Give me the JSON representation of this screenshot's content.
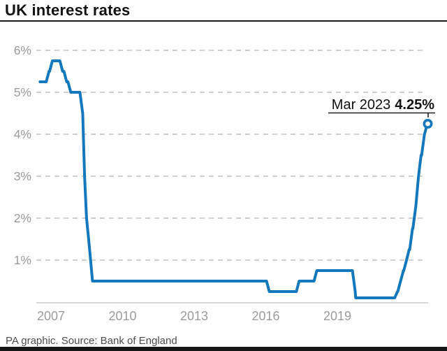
{
  "title": "UK interest rates",
  "footer": "PA graphic. Source: Bank of England",
  "annotation": {
    "date": "Mar 2023",
    "value": "4.25%"
  },
  "colors": {
    "line": "#1478bc",
    "grid": "#c2c2c2",
    "axis": "#c9c9c9",
    "tick_label": "#9b9b9b",
    "marker_fill": "#ffffff"
  },
  "chart_data": {
    "type": "line",
    "title": "UK interest rates",
    "grid": "horizontal-dashed",
    "xlim": [
      2007.0,
      2023.35
    ],
    "ylim": [
      0,
      6.35
    ],
    "x_ticks": [
      {
        "value": 2007,
        "label": "2007"
      },
      {
        "value": 2010,
        "label": "2010"
      },
      {
        "value": 2013,
        "label": "2013"
      },
      {
        "value": 2016,
        "label": "2016"
      },
      {
        "value": 2019,
        "label": "2019"
      }
    ],
    "y_ticks": [
      {
        "value": 1,
        "label": "1%"
      },
      {
        "value": 2,
        "label": "2%"
      },
      {
        "value": 3,
        "label": "3%"
      },
      {
        "value": 4,
        "label": "4%"
      },
      {
        "value": 5,
        "label": "5%"
      },
      {
        "value": 6,
        "label": "6%"
      }
    ],
    "series": [
      {
        "name": "UK interest rates",
        "points": [
          [
            2007.04,
            5.25
          ],
          [
            2007.36,
            5.5
          ],
          [
            2007.5,
            5.75
          ],
          [
            2007.93,
            5.5
          ],
          [
            2008.1,
            5.25
          ],
          [
            2008.27,
            5.0
          ],
          [
            2008.77,
            4.5
          ],
          [
            2008.85,
            3.0
          ],
          [
            2008.93,
            2.0
          ],
          [
            2009.02,
            1.5
          ],
          [
            2009.1,
            1.0
          ],
          [
            2009.18,
            0.5
          ],
          [
            2016.59,
            0.25
          ],
          [
            2017.84,
            0.5
          ],
          [
            2018.58,
            0.75
          ],
          [
            2020.19,
            0.25
          ],
          [
            2020.21,
            0.1
          ],
          [
            2021.96,
            0.25
          ],
          [
            2022.09,
            0.5
          ],
          [
            2022.21,
            0.75
          ],
          [
            2022.34,
            1.0
          ],
          [
            2022.45,
            1.25
          ],
          [
            2022.59,
            1.75
          ],
          [
            2022.72,
            2.25
          ],
          [
            2022.84,
            3.0
          ],
          [
            2022.95,
            3.5
          ],
          [
            2023.09,
            4.0
          ],
          [
            2023.21,
            4.25
          ]
        ]
      }
    ],
    "end_annotation": {
      "date": "Mar 2023",
      "value": "4.25%",
      "x": 2023.21,
      "y": 4.25
    }
  }
}
